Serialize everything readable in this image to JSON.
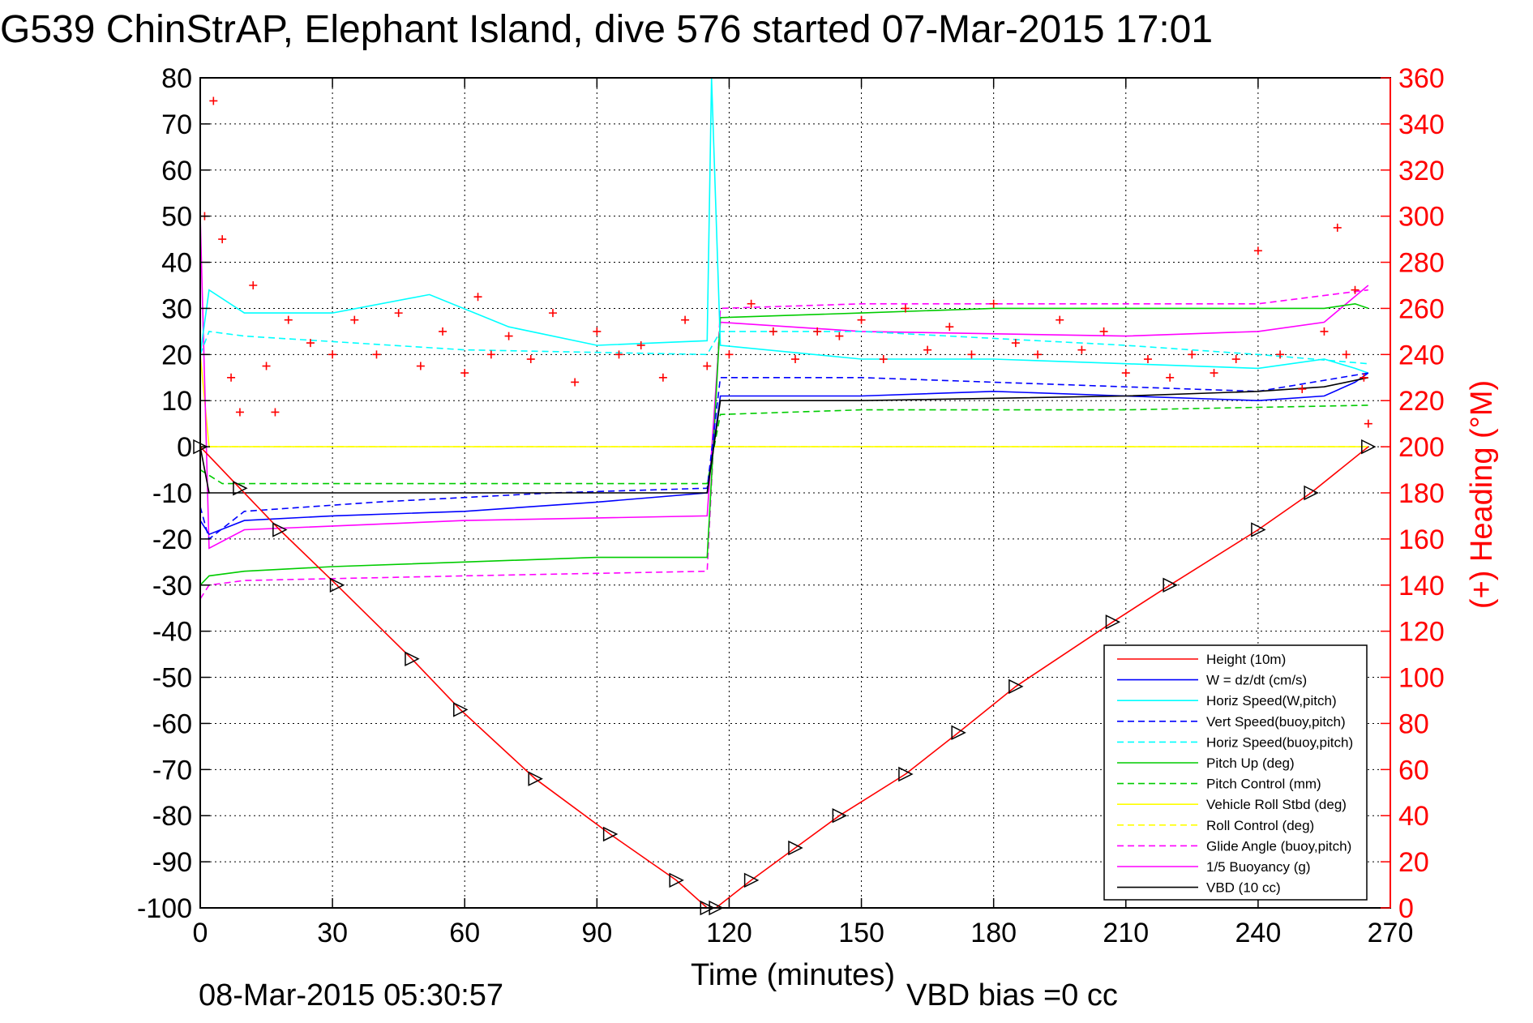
{
  "chart_data": {
    "type": "line",
    "title": "G539 ChinStrAP, Elephant Island, dive 576 started 07-Mar-2015 17:01",
    "xlabel": "Time (minutes)",
    "ylabel_right": "(+) Heading (°M)",
    "footer_timestamp": "08-Mar-2015 05:30:57",
    "footer_vbd": "VBD bias =0 cc",
    "xlim": [
      0,
      270
    ],
    "ylim": [
      -100,
      80
    ],
    "ylim_right": [
      0,
      360
    ],
    "x_ticks": [
      "0",
      "30",
      "60",
      "90",
      "120",
      "150",
      "180",
      "210",
      "240",
      "270"
    ],
    "y_ticks": [
      "80",
      "70",
      "60",
      "50",
      "40",
      "30",
      "20",
      "10",
      "0",
      "-10",
      "-20",
      "-30",
      "-40",
      "-50",
      "-60",
      "-70",
      "-80",
      "-90",
      "-100"
    ],
    "y_ticks_right": [
      "360",
      "340",
      "320",
      "300",
      "280",
      "260",
      "240",
      "220",
      "200",
      "180",
      "160",
      "140",
      "120",
      "100",
      "80",
      "60",
      "40",
      "20",
      "0"
    ],
    "grid": true,
    "legend_position": "bottom-right",
    "colors": {
      "right_axis": "#ff0000"
    },
    "series": [
      {
        "name": "Height (10m)",
        "color": "#ff0000",
        "style": "solid",
        "x": [
          0,
          9,
          18,
          31,
          48,
          59,
          76,
          93,
          108,
          115,
          117,
          125,
          135,
          145,
          160,
          172,
          185,
          207,
          220,
          240,
          252,
          265
        ],
        "values": [
          0,
          -9,
          -18,
          -30,
          -46,
          -57,
          -72,
          -84,
          -94,
          -100,
          -100,
          -94,
          -87,
          -80,
          -71,
          -62,
          -52,
          -38,
          -30,
          -18,
          -10,
          0
        ]
      },
      {
        "name": "W = dz/dt (cm/s)",
        "color": "#0000ff",
        "style": "solid",
        "x": [
          0,
          2,
          10,
          30,
          60,
          90,
          115,
          118,
          150,
          180,
          210,
          240,
          255,
          262,
          265
        ],
        "values": [
          -16,
          -19,
          -16,
          -15,
          -14,
          -12,
          -10,
          11,
          11,
          12,
          11,
          10,
          11,
          14,
          16
        ]
      },
      {
        "name": "Horiz Speed(W,pitch)",
        "color": "#00ffff",
        "style": "solid",
        "x": [
          0,
          2,
          10,
          30,
          52,
          70,
          90,
          115,
          116,
          118,
          150,
          180,
          210,
          240,
          255,
          262,
          265
        ],
        "values": [
          20,
          34,
          29,
          29,
          33,
          26,
          22,
          23,
          80,
          22,
          19,
          19,
          18,
          17,
          19,
          17,
          16
        ]
      },
      {
        "name": "Vert Speed(buoy,pitch)",
        "color": "#0000ff",
        "style": "dashed",
        "x": [
          0,
          2,
          10,
          40,
          80,
          115,
          118,
          150,
          210,
          240,
          265
        ],
        "values": [
          -13,
          -20,
          -14,
          -12,
          -10,
          -9,
          15,
          15,
          13,
          12,
          16
        ]
      },
      {
        "name": "Horiz Speed(buoy,pitch)",
        "color": "#00ffff",
        "style": "dashed",
        "x": [
          0,
          2,
          10,
          60,
          115,
          118,
          150,
          210,
          240,
          265
        ],
        "values": [
          20,
          25,
          24,
          21,
          20,
          25,
          25,
          22,
          20,
          18
        ]
      },
      {
        "name": "Pitch Up (deg)",
        "color": "#00cc00",
        "style": "solid",
        "x": [
          0,
          2,
          10,
          30,
          60,
          90,
          115,
          118,
          150,
          180,
          210,
          240,
          255,
          262,
          265
        ],
        "values": [
          -30,
          -28,
          -27,
          -26,
          -25,
          -24,
          -24,
          28,
          29,
          30,
          30,
          30,
          30,
          31,
          30
        ]
      },
      {
        "name": "Pitch Control (mm)",
        "color": "#00cc00",
        "style": "dashed",
        "x": [
          0,
          5,
          115,
          118,
          150,
          210,
          265
        ],
        "values": [
          -5,
          -8,
          -8,
          7,
          8,
          8,
          9
        ]
      },
      {
        "name": "Vehicle Roll Stbd (deg)",
        "color": "#ffff00",
        "style": "solid",
        "x": [
          0,
          2,
          10,
          60,
          115,
          118,
          180,
          240,
          262,
          265
        ],
        "values": [
          20,
          0,
          0,
          0,
          0,
          0,
          0,
          0,
          0,
          0
        ]
      },
      {
        "name": "Roll Control (deg)",
        "color": "#ffff00",
        "style": "dashed",
        "x": [
          0,
          265
        ],
        "values": [
          0,
          0
        ]
      },
      {
        "name": "Glide Angle (buoy,pitch)",
        "color": "#ff00ff",
        "style": "dashed",
        "x": [
          0,
          2,
          10,
          60,
          115,
          118,
          150,
          210,
          240,
          265
        ],
        "values": [
          -33,
          -30,
          -29,
          -28,
          -27,
          30,
          31,
          31,
          31,
          34
        ]
      },
      {
        "name": "1/5 Buoyancy (g)",
        "color": "#ff00ff",
        "style": "solid",
        "x": [
          0,
          2,
          10,
          60,
          115,
          118,
          150,
          210,
          240,
          255,
          265
        ],
        "values": [
          50,
          -22,
          -18,
          -16,
          -15,
          27,
          25,
          24,
          25,
          27,
          35
        ]
      },
      {
        "name": "VBD (10 cc)",
        "color": "#000000",
        "style": "solid",
        "x": [
          0,
          2,
          10,
          115,
          118,
          150,
          210,
          240,
          255,
          265
        ],
        "values": [
          0,
          -10,
          -10,
          -10,
          10,
          10,
          11,
          12,
          13,
          15
        ]
      }
    ],
    "heading": {
      "name": "(+) Heading",
      "color": "#ff0000",
      "x": [
        1,
        3,
        5,
        7,
        9,
        12,
        15,
        17,
        20,
        25,
        30,
        35,
        40,
        45,
        50,
        55,
        60,
        63,
        66,
        70,
        75,
        80,
        85,
        90,
        95,
        100,
        105,
        110,
        115,
        120,
        125,
        130,
        135,
        140,
        145,
        150,
        155,
        160,
        165,
        170,
        175,
        180,
        185,
        190,
        195,
        200,
        205,
        210,
        215,
        220,
        225,
        230,
        235,
        240,
        245,
        250,
        255,
        258,
        260,
        262,
        264,
        265
      ],
      "values": [
        300,
        350,
        290,
        230,
        215,
        270,
        235,
        215,
        255,
        245,
        240,
        255,
        240,
        258,
        235,
        250,
        232,
        265,
        240,
        248,
        238,
        258,
        228,
        250,
        240,
        244,
        230,
        255,
        235,
        240,
        262,
        250,
        238,
        250,
        248,
        255,
        238,
        260,
        242,
        252,
        240,
        262,
        245,
        240,
        255,
        242,
        250,
        232,
        238,
        230,
        240,
        232,
        238,
        285,
        240,
        225,
        250,
        295,
        240,
        268,
        230,
        210
      ]
    }
  }
}
